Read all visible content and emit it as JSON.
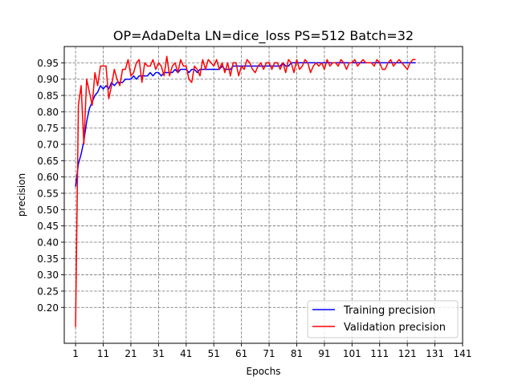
{
  "chart_data": {
    "type": "line",
    "title": "OP=AdaDelta LN=dice_loss PS=512 Batch=32",
    "xlabel": "Epochs",
    "ylabel": "precision",
    "xlim": [
      -3.1,
      141
    ],
    "ylim": [
      0.09,
      1.0
    ],
    "xticks": [
      "1",
      "11",
      "21",
      "31",
      "41",
      "51",
      "61",
      "71",
      "81",
      "91",
      "101",
      "111",
      "121",
      "131",
      "141"
    ],
    "yticks": [
      "0.20",
      "0.25",
      "0.30",
      "0.35",
      "0.40",
      "0.45",
      "0.50",
      "0.55",
      "0.60",
      "0.65",
      "0.70",
      "0.75",
      "0.80",
      "0.85",
      "0.90",
      "0.95"
    ],
    "grid": true,
    "legend_position": "lower-right",
    "colors": {
      "training": "#0000ff",
      "validation": "#ff0000"
    },
    "series": [
      {
        "name": "Training precision",
        "color": "#0000ff",
        "x": [
          1,
          2,
          3,
          4,
          5,
          6,
          7,
          8,
          9,
          10,
          11,
          12,
          13,
          14,
          15,
          16,
          17,
          18,
          19,
          20,
          21,
          22,
          23,
          24,
          25,
          26,
          27,
          28,
          29,
          30,
          31,
          32,
          33,
          34,
          35,
          36,
          37,
          38,
          39,
          40,
          41,
          42,
          43,
          44,
          45,
          46,
          47,
          48,
          49,
          50,
          51,
          52,
          53,
          54,
          55,
          56,
          57,
          58,
          59,
          60,
          61,
          62,
          63,
          64,
          65,
          66,
          67,
          68,
          69,
          70,
          71,
          72,
          73,
          74,
          75,
          76,
          77,
          78,
          79,
          80,
          81,
          82,
          83,
          84,
          85,
          86,
          87,
          88,
          89,
          90,
          91,
          92,
          93,
          94,
          95,
          96,
          97,
          98,
          99,
          100,
          101,
          102,
          103,
          104,
          105,
          106,
          107,
          108,
          109,
          110,
          111,
          112,
          113,
          114,
          115,
          116,
          117,
          118,
          119,
          120,
          121,
          122,
          123,
          124
        ],
        "y": [
          0.57,
          0.64,
          0.67,
          0.71,
          0.77,
          0.81,
          0.83,
          0.85,
          0.86,
          0.88,
          0.87,
          0.88,
          0.87,
          0.89,
          0.88,
          0.89,
          0.89,
          0.89,
          0.9,
          0.9,
          0.9,
          0.91,
          0.9,
          0.91,
          0.91,
          0.91,
          0.91,
          0.92,
          0.91,
          0.92,
          0.92,
          0.91,
          0.92,
          0.92,
          0.92,
          0.92,
          0.93,
          0.92,
          0.93,
          0.93,
          0.93,
          0.92,
          0.93,
          0.93,
          0.92,
          0.93,
          0.93,
          0.93,
          0.93,
          0.93,
          0.93,
          0.93,
          0.93,
          0.94,
          0.93,
          0.93,
          0.93,
          0.94,
          0.94,
          0.94,
          0.94,
          0.94,
          0.94,
          0.94,
          0.94,
          0.94,
          0.94,
          0.94,
          0.94,
          0.94,
          0.94,
          0.94,
          0.94,
          0.94,
          0.94,
          0.95,
          0.94,
          0.94,
          0.95,
          0.95,
          0.95,
          0.95,
          0.95,
          0.95,
          0.95,
          0.95,
          0.95,
          0.95,
          0.95,
          0.95,
          0.95,
          0.95,
          0.95,
          0.95,
          0.95,
          0.95,
          0.95,
          0.95,
          0.95,
          0.95,
          0.95,
          0.95,
          0.95,
          0.95,
          0.95,
          0.95,
          0.95,
          0.95,
          0.95,
          0.95,
          0.95,
          0.95,
          0.95,
          0.95,
          0.95,
          0.95,
          0.95,
          0.95,
          0.95,
          0.95,
          0.95,
          0.95,
          0.95,
          0.95
        ]
      },
      {
        "name": "Validation precision",
        "color": "#ff0000",
        "x": [
          1,
          2,
          3,
          4,
          5,
          6,
          7,
          8,
          9,
          10,
          11,
          12,
          13,
          14,
          15,
          16,
          17,
          18,
          19,
          20,
          21,
          22,
          23,
          24,
          25,
          26,
          27,
          28,
          29,
          30,
          31,
          32,
          33,
          34,
          35,
          36,
          37,
          38,
          39,
          40,
          41,
          42,
          43,
          44,
          45,
          46,
          47,
          48,
          49,
          50,
          51,
          52,
          53,
          54,
          55,
          56,
          57,
          58,
          59,
          60,
          61,
          62,
          63,
          64,
          65,
          66,
          67,
          68,
          69,
          70,
          71,
          72,
          73,
          74,
          75,
          76,
          77,
          78,
          79,
          80,
          81,
          82,
          83,
          84,
          85,
          86,
          87,
          88,
          89,
          90,
          91,
          92,
          93,
          94,
          95,
          96,
          97,
          98,
          99,
          100,
          101,
          102,
          103,
          104,
          105,
          106,
          107,
          108,
          109,
          110,
          111,
          112,
          113,
          114,
          115,
          116,
          117,
          118,
          119,
          120,
          121,
          122,
          123,
          124
        ],
        "y": [
          0.14,
          0.82,
          0.88,
          0.7,
          0.9,
          0.86,
          0.82,
          0.92,
          0.88,
          0.94,
          0.94,
          0.94,
          0.84,
          0.88,
          0.93,
          0.9,
          0.88,
          0.93,
          0.93,
          0.96,
          0.91,
          0.92,
          0.95,
          0.96,
          0.89,
          0.95,
          0.94,
          0.94,
          0.96,
          0.93,
          0.95,
          0.94,
          0.91,
          0.97,
          0.91,
          0.94,
          0.95,
          0.92,
          0.96,
          0.94,
          0.94,
          0.9,
          0.89,
          0.94,
          0.93,
          0.91,
          0.96,
          0.93,
          0.96,
          0.95,
          0.94,
          0.96,
          0.93,
          0.95,
          0.92,
          0.95,
          0.91,
          0.95,
          0.95,
          0.91,
          0.94,
          0.93,
          0.96,
          0.95,
          0.93,
          0.92,
          0.94,
          0.95,
          0.93,
          0.95,
          0.95,
          0.93,
          0.95,
          0.95,
          0.93,
          0.95,
          0.92,
          0.96,
          0.95,
          0.92,
          0.96,
          0.93,
          0.94,
          0.96,
          0.95,
          0.92,
          0.94,
          0.95,
          0.94,
          0.95,
          0.93,
          0.96,
          0.94,
          0.95,
          0.95,
          0.94,
          0.96,
          0.95,
          0.93,
          0.95,
          0.95,
          0.96,
          0.94,
          0.95,
          0.96,
          0.95,
          0.95,
          0.95,
          0.94,
          0.96,
          0.95,
          0.93,
          0.93,
          0.95,
          0.96,
          0.94,
          0.95,
          0.96,
          0.95,
          0.94,
          0.93,
          0.95,
          0.96,
          0.96
        ]
      }
    ]
  }
}
